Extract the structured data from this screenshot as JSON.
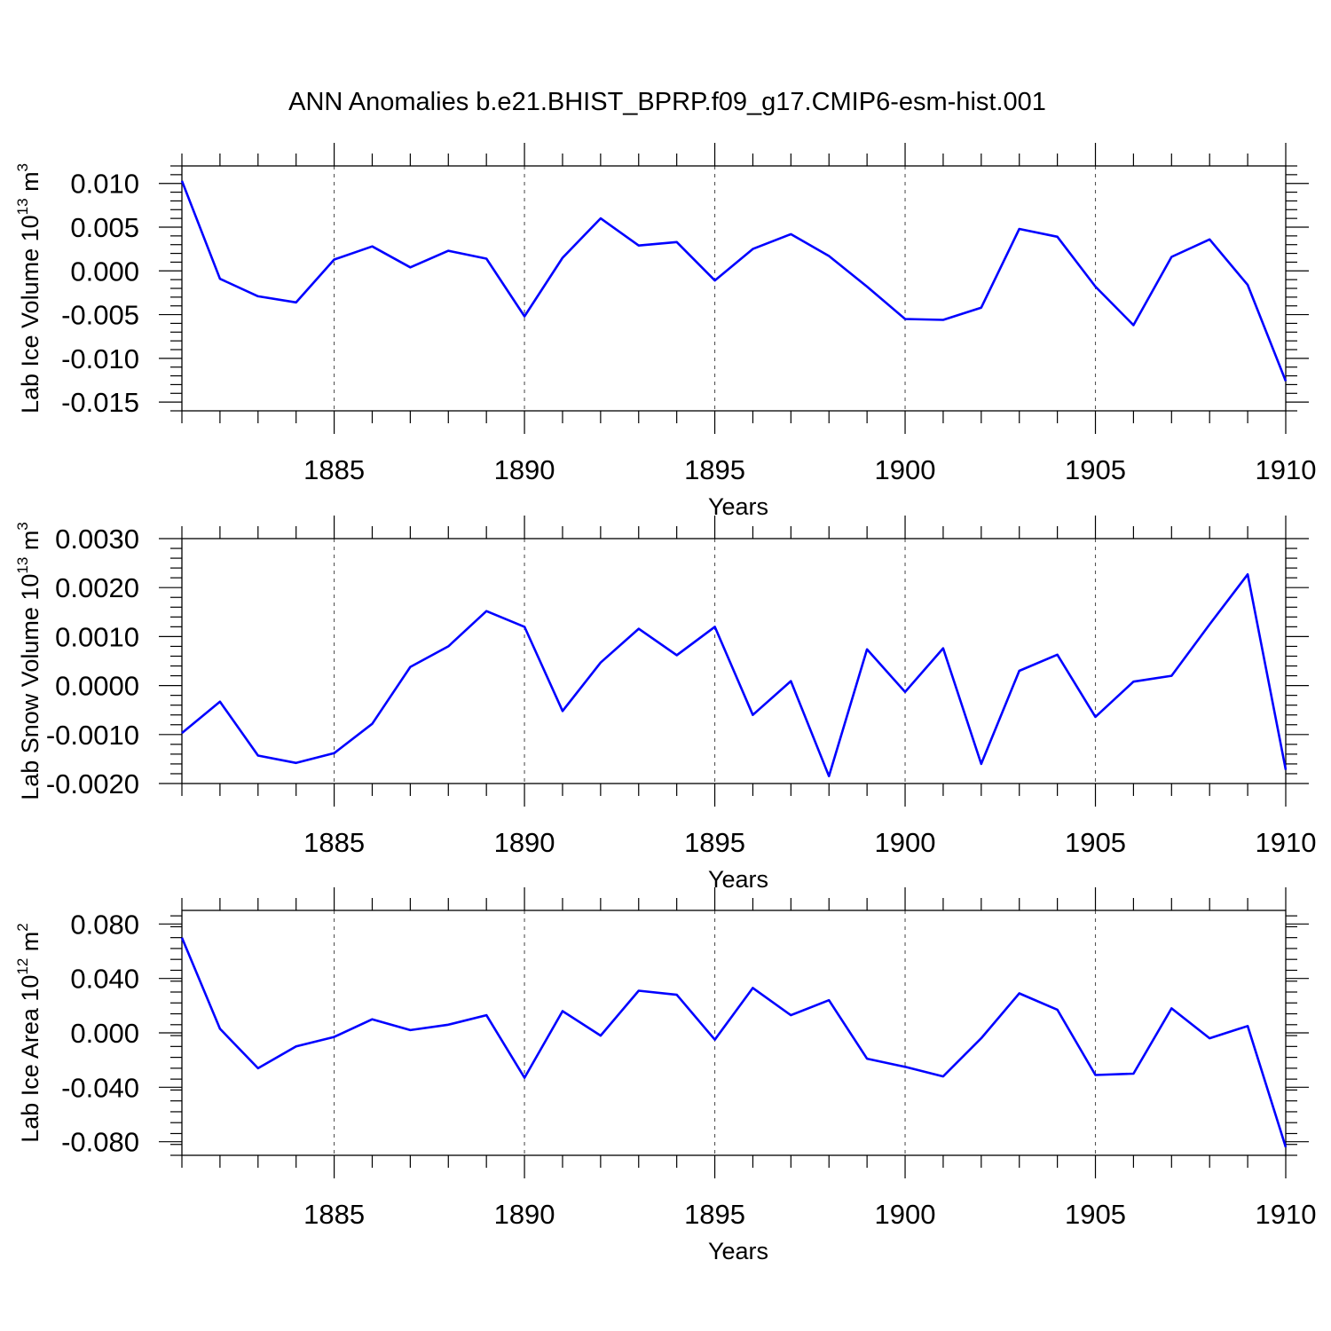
{
  "title": "ANN Anomalies b.e21.BHIST_BPRP.f09_g17.CMIP6-esm-hist.001",
  "colors": {
    "series": "#0000ff",
    "axis": "#000000",
    "grid": "#555555"
  },
  "chart_data": [
    {
      "type": "line",
      "ylabel": {
        "text": "Lab Ice Volume 10",
        "sup": "13",
        "unit": " m",
        "unit_sup": "3"
      },
      "xlabel": "Years",
      "xlim": [
        1881,
        1910
      ],
      "ylim": [
        -0.016,
        0.012
      ],
      "xticks": [
        1885,
        1890,
        1895,
        1900,
        1905,
        1910
      ],
      "yticks": [
        0.01,
        0.005,
        0.0,
        -0.005,
        -0.01,
        -0.015
      ],
      "ytick_labels": [
        "0.010",
        "0.005",
        "0.000",
        "-0.005",
        "-0.010",
        "-0.015"
      ],
      "grid": "dashed vertical at major x ticks",
      "x": [
        1881,
        1882,
        1883,
        1884,
        1885,
        1886,
        1887,
        1888,
        1889,
        1890,
        1891,
        1892,
        1893,
        1894,
        1895,
        1896,
        1897,
        1898,
        1899,
        1900,
        1901,
        1902,
        1903,
        1904,
        1905,
        1906,
        1907,
        1908,
        1909,
        1910
      ],
      "y": [
        0.0103,
        -0.0009,
        -0.0029,
        -0.0036,
        0.0013,
        0.0028,
        0.0004,
        0.0023,
        0.0014,
        -0.0052,
        0.0015,
        0.006,
        0.0029,
        0.0033,
        -0.0011,
        0.0025,
        0.0042,
        0.0017,
        -0.0018,
        -0.0055,
        -0.0056,
        -0.0042,
        0.0048,
        0.0039,
        -0.0018,
        -0.0062,
        0.0016,
        0.0036,
        -0.0016,
        -0.0126
      ]
    },
    {
      "type": "line",
      "ylabel": {
        "text": "Lab Snow Volume 10",
        "sup": "13",
        "unit": " m",
        "unit_sup": "3"
      },
      "xlabel": "Years",
      "xlim": [
        1881,
        1910
      ],
      "ylim": [
        -0.002,
        0.003
      ],
      "xticks": [
        1885,
        1890,
        1895,
        1900,
        1905,
        1910
      ],
      "yticks": [
        0.003,
        0.002,
        0.001,
        0.0,
        -0.001,
        -0.002
      ],
      "ytick_labels": [
        "0.0030",
        "0.0020",
        "0.0010",
        "0.0000",
        "-0.0010",
        "-0.0020"
      ],
      "grid": "dashed vertical at major x ticks",
      "x": [
        1881,
        1882,
        1883,
        1884,
        1885,
        1886,
        1887,
        1888,
        1889,
        1890,
        1891,
        1892,
        1893,
        1894,
        1895,
        1896,
        1897,
        1898,
        1899,
        1900,
        1901,
        1902,
        1903,
        1904,
        1905,
        1906,
        1907,
        1908,
        1909,
        1910
      ],
      "y": [
        -0.00097,
        -0.00033,
        -0.00143,
        -0.00158,
        -0.00138,
        -0.00078,
        0.00038,
        0.0008,
        0.00152,
        0.0012,
        -0.00052,
        0.00047,
        0.00116,
        0.00062,
        0.0012,
        -0.0006,
        9e-05,
        -0.00185,
        0.00074,
        -0.00013,
        0.00076,
        -0.0016,
        0.0003,
        0.00063,
        -0.00064,
        8e-05,
        0.0002,
        0.00125,
        0.00227,
        -0.00172
      ]
    },
    {
      "type": "line",
      "ylabel": {
        "text": "Lab Ice Area 10",
        "sup": "12",
        "unit": " m",
        "unit_sup": "2"
      },
      "xlabel": "Years",
      "xlim": [
        1881,
        1910
      ],
      "ylim": [
        -0.09,
        0.09
      ],
      "xticks": [
        1885,
        1890,
        1895,
        1900,
        1905,
        1910
      ],
      "yticks": [
        0.08,
        0.04,
        0.0,
        -0.04,
        -0.08
      ],
      "ytick_labels": [
        "0.080",
        "0.040",
        "0.000",
        "-0.040",
        "-0.080"
      ],
      "grid": "dashed vertical at major x ticks",
      "x": [
        1881,
        1882,
        1883,
        1884,
        1885,
        1886,
        1887,
        1888,
        1889,
        1890,
        1891,
        1892,
        1893,
        1894,
        1895,
        1896,
        1897,
        1898,
        1899,
        1900,
        1901,
        1902,
        1903,
        1904,
        1905,
        1906,
        1907,
        1908,
        1909,
        1910
      ],
      "y": [
        0.07,
        0.003,
        -0.026,
        -0.01,
        -0.003,
        0.01,
        0.002,
        0.006,
        0.013,
        -0.033,
        0.016,
        -0.002,
        0.031,
        0.028,
        -0.005,
        0.033,
        0.013,
        0.024,
        -0.019,
        -0.025,
        -0.032,
        -0.004,
        0.029,
        0.017,
        -0.031,
        -0.03,
        0.018,
        -0.004,
        0.005,
        -0.084
      ]
    }
  ]
}
